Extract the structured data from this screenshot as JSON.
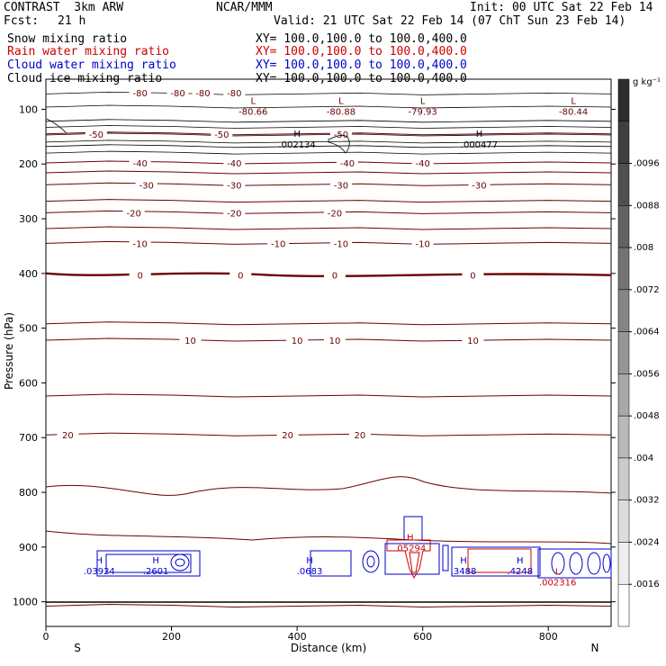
{
  "header": {
    "model": "CONTRAST  3km ARW",
    "center": "NCAR/MMM",
    "init": "Init: 00 UTC Sat 22 Feb 14",
    "fcst_label": "Fcst:",
    "fcst_value": "21 h",
    "valid": "Valid: 21 UTC Sat 22 Feb 14 (07 ChT Sun 23 Feb 14)"
  },
  "fields": [
    {
      "name": "Snow mixing ratio",
      "xy": "XY= 100.0,100.0 to 100.0,400.0",
      "color": "#000000"
    },
    {
      "name": "Rain water mixing ratio",
      "xy": "XY= 100.0,100.0 to 100.0,400.0",
      "color": "#cc0000"
    },
    {
      "name": "Cloud water mixing ratio",
      "xy": "XY= 100.0,100.0 to 100.0,400.0",
      "color": "#0000cc"
    },
    {
      "name": "Cloud ice mixing ratio",
      "xy": "XY= 100.0,100.0 to 100.0,400.0",
      "color": "#000000"
    }
  ],
  "chart_data": {
    "type": "heatmap",
    "xlabel": "Distance (km)",
    "ylabel": "Pressure (hPa)",
    "xlim": [
      0,
      900
    ],
    "ylim": [
      1045,
      45
    ],
    "x_ticks": [
      0,
      200,
      400,
      600,
      800
    ],
    "y_ticks": [
      100,
      200,
      300,
      400,
      500,
      600,
      700,
      800,
      900,
      1000
    ],
    "x_end_labels": {
      "left": "S",
      "right": "N"
    },
    "colorbar": {
      "unit": "g kg⁻¹",
      "ticks": [
        ".0016",
        ".0024",
        ".0032",
        ".004",
        ".0048",
        ".0056",
        ".0064",
        ".0072",
        ".008",
        ".0088",
        ".0096"
      ]
    },
    "temperature_contours": [
      {
        "value": -80,
        "labels": [
          "-80",
          "-80",
          "-80",
          "-80"
        ]
      },
      {
        "value": -50,
        "labels": [
          "-50",
          "-50",
          "-50"
        ]
      },
      {
        "value": -40,
        "labels": [
          "-40",
          "-40",
          "-40",
          "-40"
        ]
      },
      {
        "value": -30,
        "labels": [
          "-30",
          "-30",
          "-30",
          "-30"
        ]
      },
      {
        "value": -20,
        "labels": [
          "-20",
          "-20",
          "-20"
        ]
      },
      {
        "value": -10,
        "labels": [
          "-10",
          "-10",
          "-10",
          "-10"
        ]
      },
      {
        "value": 0,
        "labels": [
          "0",
          "0",
          "0",
          "0"
        ]
      },
      {
        "value": 10,
        "labels": [
          "10",
          "10",
          "10",
          "10"
        ]
      },
      {
        "value": 20,
        "labels": [
          "20",
          "20",
          "20"
        ]
      }
    ],
    "extrema": [
      {
        "type": "L",
        "value": "-80.66",
        "x": 330,
        "p": 105,
        "color": "#6b0000"
      },
      {
        "type": "L",
        "value": "-80.88",
        "x": 470,
        "p": 105,
        "color": "#6b0000"
      },
      {
        "type": "L",
        "value": "-79.93",
        "x": 600,
        "p": 105,
        "color": "#6b0000"
      },
      {
        "type": "L",
        "value": "-80.44",
        "x": 840,
        "p": 105,
        "color": "#6b0000"
      },
      {
        "type": "H",
        "value": ".002134",
        "x": 400,
        "p": 165,
        "color": "#000000"
      },
      {
        "type": "H",
        "value": ".000477",
        "x": 690,
        "p": 165,
        "color": "#000000"
      },
      {
        "type": "H",
        "value": ".03924",
        "x": 85,
        "p": 945,
        "color": "#0000cc"
      },
      {
        "type": "H",
        "value": ".2601",
        "x": 175,
        "p": 945,
        "color": "#0000cc"
      },
      {
        "type": "H",
        "value": ".0683",
        "x": 420,
        "p": 945,
        "color": "#0000cc"
      },
      {
        "type": "H",
        "value": ".05294",
        "x": 580,
        "p": 903,
        "color": "#cc0000"
      },
      {
        "type": "H",
        "value": ".3488",
        "x": 665,
        "p": 945,
        "color": "#0000cc"
      },
      {
        "type": "H",
        "value": ".4248",
        "x": 755,
        "p": 945,
        "color": "#0000cc"
      },
      {
        "type": "L",
        "value": ".002316",
        "x": 815,
        "p": 965,
        "color": "#cc0000"
      }
    ]
  }
}
